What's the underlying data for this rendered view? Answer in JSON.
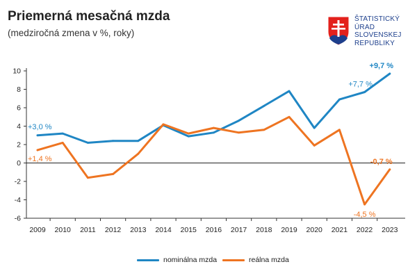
{
  "header": {
    "title": "Priemerná mesačná mzda",
    "subtitle": "(medziročná zmena v %, roky)"
  },
  "logo": {
    "lines": [
      "ŠTATISTICKÝ",
      "ÚRAD",
      "SLOVENSKEJ",
      "REPUBLIKY"
    ],
    "color": "#1d3f8c"
  },
  "chart_data": {
    "type": "line",
    "title": "Priemerná mesačná mzda",
    "subtitle": "(medziročná zmena v %, roky)",
    "x": [
      "2009",
      "2010",
      "2011",
      "2012",
      "2013",
      "2014",
      "2015",
      "2016",
      "2017",
      "2018",
      "2019",
      "2020",
      "2021",
      "2022",
      "2023"
    ],
    "ylim": [
      -6,
      10
    ],
    "yticks": [
      -6,
      -4,
      -2,
      0,
      2,
      4,
      6,
      8,
      10
    ],
    "series": [
      {
        "name": "nominálna mzda",
        "color": "#1f86c4",
        "values": [
          3.0,
          3.2,
          2.2,
          2.4,
          2.4,
          4.1,
          2.9,
          3.3,
          4.6,
          6.2,
          7.8,
          3.8,
          6.9,
          7.7,
          9.7
        ]
      },
      {
        "name": "reálna mzda",
        "color": "#ee7421",
        "values": [
          1.4,
          2.2,
          -1.6,
          -1.2,
          1.0,
          4.2,
          3.2,
          3.8,
          3.3,
          3.6,
          5.0,
          1.9,
          3.6,
          -4.5,
          -0.7
        ]
      }
    ],
    "annotations": [
      {
        "text": "+3,0 %",
        "series": 0,
        "index": 0,
        "pos": "above"
      },
      {
        "text": "+1,4 %",
        "series": 1,
        "index": 0,
        "pos": "below"
      },
      {
        "text": "+7,7 %",
        "series": 0,
        "index": 13,
        "pos": "above-left"
      },
      {
        "text": "+9,7 %",
        "series": 0,
        "index": 14,
        "pos": "above"
      },
      {
        "text": "-4,5 %",
        "series": 1,
        "index": 13,
        "pos": "below"
      },
      {
        "text": "-0,7 %",
        "series": 1,
        "index": 14,
        "pos": "above"
      }
    ],
    "legend": [
      "nominálna mzda",
      "reálna mzda"
    ],
    "legend_position": "bottom-center",
    "grid": false
  }
}
